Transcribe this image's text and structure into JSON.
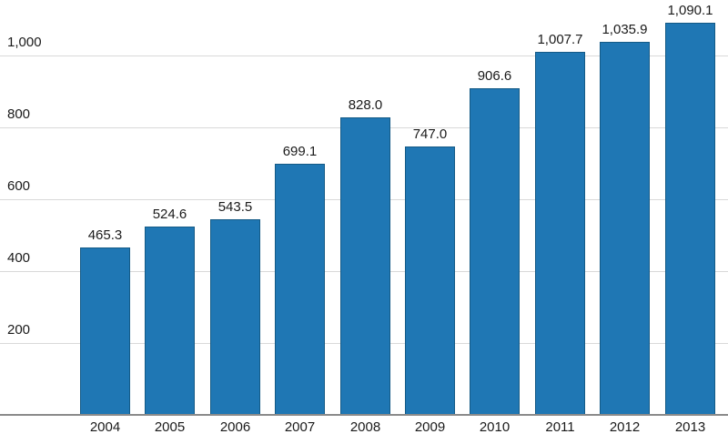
{
  "chart_data": {
    "type": "bar",
    "title": "",
    "xlabel": "",
    "ylabel": "",
    "categories": [
      "2004",
      "2005",
      "2006",
      "2007",
      "2008",
      "2009",
      "2010",
      "2011",
      "2012",
      "2013"
    ],
    "values": [
      465.3,
      524.6,
      543.5,
      699.1,
      828.0,
      747.0,
      906.6,
      1007.7,
      1035.9,
      1090.1
    ],
    "value_labels": [
      "465.3",
      "524.6",
      "543.5",
      "699.1",
      "828.0",
      "747.0",
      "906.6",
      "1,007.7",
      "1,035.9",
      "1,090.1"
    ],
    "yticks": [
      {
        "value": 200,
        "label": "200"
      },
      {
        "value": 400,
        "label": "400"
      },
      {
        "value": 600,
        "label": "600"
      },
      {
        "value": 800,
        "label": "800"
      },
      {
        "value": 1000,
        "label": "1,000"
      }
    ],
    "ylim": [
      0,
      1100
    ],
    "grid": true,
    "legend": "none",
    "colors": {
      "bar_fill": "#1f77b4",
      "bar_border": "#145a86",
      "gridline": "#d9d9d9",
      "axis_line": "#8a8a8a",
      "text": "#1a1a1a",
      "background": "#ffffff"
    }
  }
}
